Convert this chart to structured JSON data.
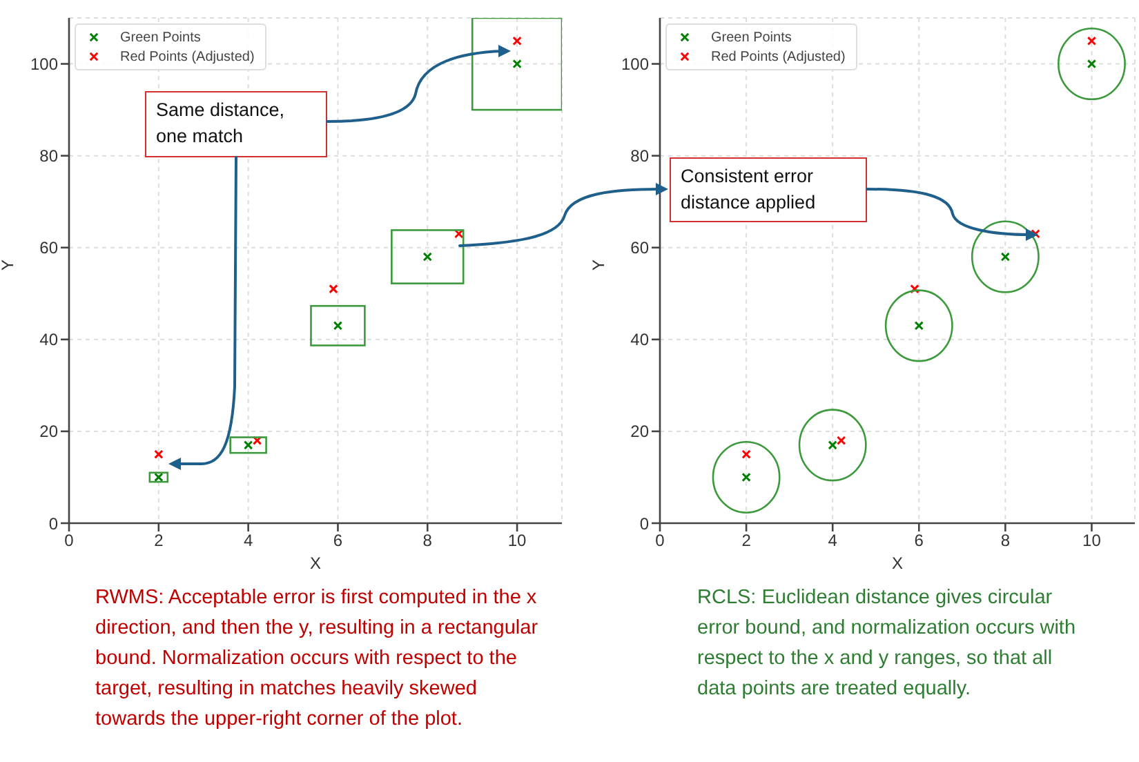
{
  "chart_data": [
    {
      "type": "scatter",
      "xlabel": "X",
      "ylabel": "Y",
      "xlim": [
        0,
        11
      ],
      "ylim": [
        0,
        110
      ],
      "xticks": [
        0,
        2,
        4,
        6,
        8,
        10
      ],
      "yticks": [
        0,
        20,
        40,
        60,
        80,
        100
      ],
      "grid": true,
      "legend": "top left",
      "marker": "cross",
      "annotations": [
        "Same distance, one match",
        "RWMS: Acceptable error is first computed in the x direction, and then the y, resulting in a rectangular bound. Normalization occurs with respect to the target, resulting in matches heavily skewed towards the upper-right corner of the plot."
      ],
      "series": [
        {
          "name": "Green Points",
          "color": "#008000",
          "x": [
            2,
            4,
            6,
            8,
            10
          ],
          "values": [
            10,
            17,
            43,
            58,
            100
          ]
        },
        {
          "name": "Red Points (Adjusted)",
          "color": "#ff0000",
          "x": [
            2,
            4.2,
            5.9,
            8.7,
            10
          ],
          "values": [
            15,
            18,
            51,
            63,
            105
          ]
        }
      ]
    },
    {
      "type": "scatter",
      "xlabel": "X",
      "ylabel": "Y",
      "xlim": [
        0,
        11
      ],
      "ylim": [
        0,
        110
      ],
      "xticks": [
        0,
        2,
        4,
        6,
        8,
        10
      ],
      "yticks": [
        0,
        20,
        40,
        60,
        80,
        100
      ],
      "grid": true,
      "legend": "top left",
      "marker": "cross",
      "annotations": [
        "Consistent error distance applied",
        "RCLS: Euclidean distance gives circular error bound, and normalization occurs with respect to the x and y ranges, so that all data points are treated equally."
      ],
      "series": [
        {
          "name": "Green Points",
          "color": "#008000",
          "x": [
            2,
            4,
            6,
            8,
            10
          ],
          "values": [
            10,
            17,
            43,
            58,
            100
          ]
        },
        {
          "name": "Red Points (Adjusted)",
          "color": "#ff0000",
          "x": [
            2,
            4.2,
            5.9,
            8.7,
            10
          ],
          "values": [
            15,
            18,
            51,
            63,
            105
          ]
        }
      ]
    }
  ]
}
